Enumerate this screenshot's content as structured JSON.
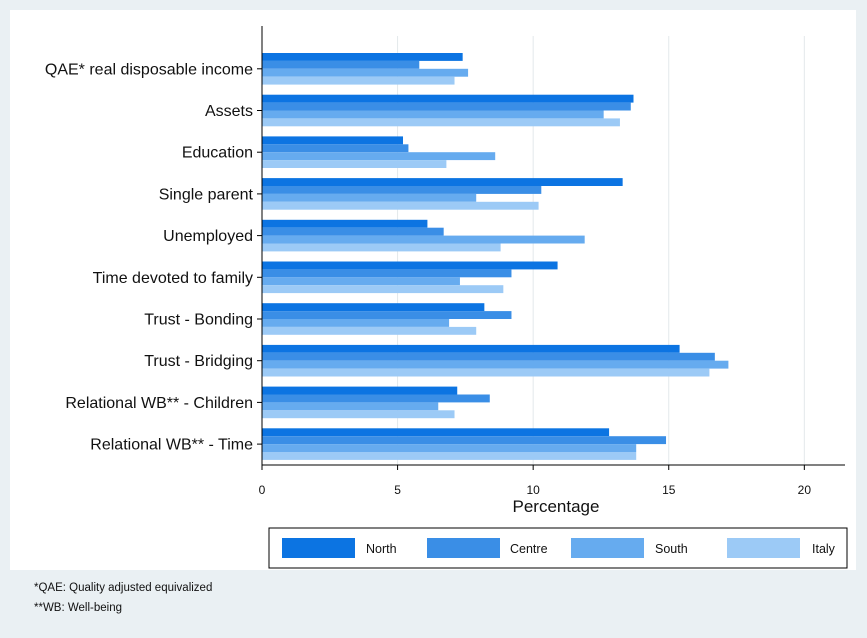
{
  "chart_data": {
    "type": "bar",
    "orientation": "horizontal",
    "categories": [
      "QAE* real disposable income",
      "Assets",
      "Education",
      "Single parent",
      "Unemployed",
      "Time devoted to family",
      "Trust - Bonding",
      "Trust - Bridging",
      "Relational WB** - Children",
      "Relational WB** - Time"
    ],
    "series": [
      {
        "name": "North",
        "color": "#0c74e2",
        "values": [
          7.4,
          13.7,
          5.2,
          13.3,
          6.1,
          10.9,
          8.2,
          15.4,
          7.2,
          12.8
        ]
      },
      {
        "name": "Centre",
        "color": "#3a8ee6",
        "values": [
          5.8,
          13.6,
          5.4,
          10.3,
          6.7,
          9.2,
          9.2,
          16.7,
          8.4,
          14.9
        ]
      },
      {
        "name": "South",
        "color": "#66abef",
        "values": [
          7.6,
          12.6,
          8.6,
          7.9,
          11.9,
          7.3,
          6.9,
          17.2,
          6.5,
          13.8
        ]
      },
      {
        "name": "Italy",
        "color": "#9ccaf6",
        "values": [
          7.1,
          13.2,
          6.8,
          10.2,
          8.8,
          8.9,
          7.9,
          16.5,
          7.1,
          13.8
        ]
      }
    ],
    "xlabel": "Percentage",
    "ylabel": "",
    "xlim": [
      0,
      21.5
    ],
    "xticks": [
      0,
      5,
      10,
      15,
      20
    ],
    "grid": true,
    "legend_position": "bottom"
  },
  "footnotes": [
    "*QAE: Quality adjusted equivalized",
    "**WB: Well-being"
  ]
}
